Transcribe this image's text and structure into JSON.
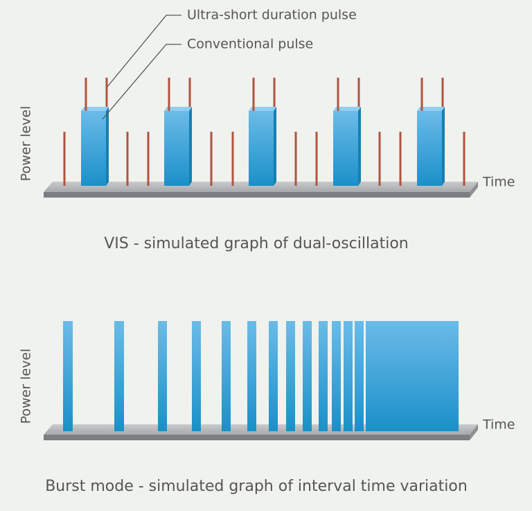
{
  "top_diagram": {
    "legend": [
      "Ultra-short duration pulse",
      "Conventional pulse"
    ],
    "y_label": "Power level",
    "x_label": "Time",
    "caption": "VIS - simulated graph of dual-oscillation"
  },
  "bottom_diagram": {
    "y_label": "Power level",
    "x_label": "Time",
    "caption": "Burst mode - simulated graph of interval time variation"
  }
}
